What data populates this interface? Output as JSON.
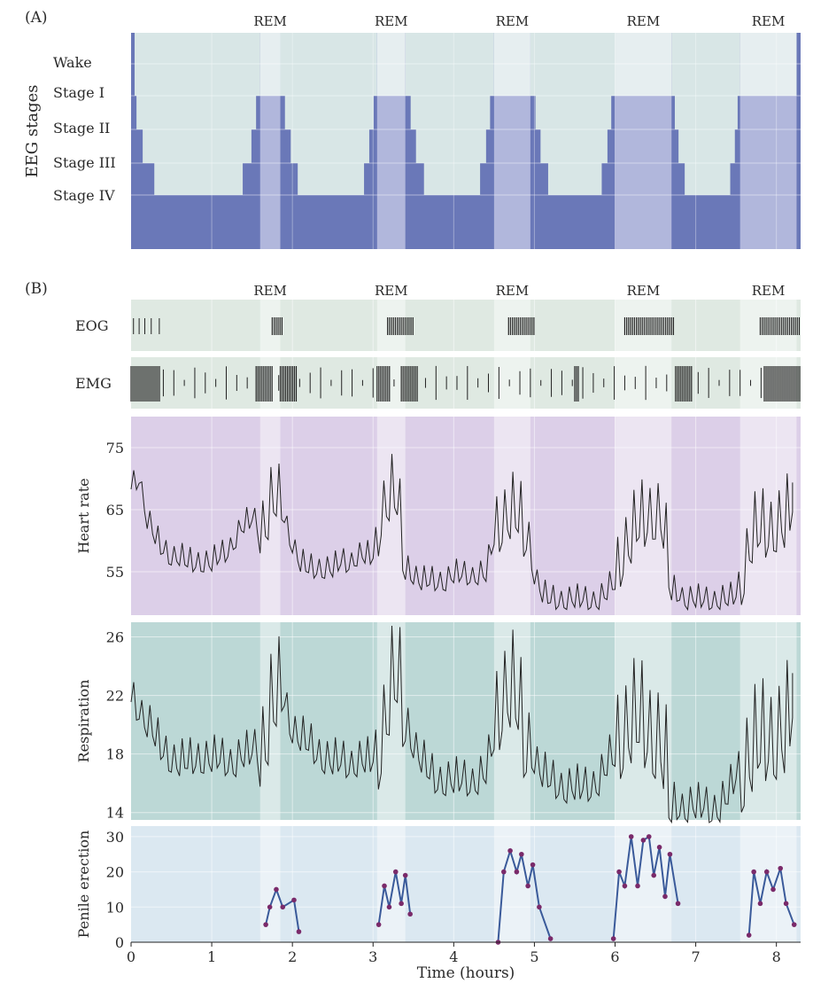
{
  "chart_data": [
    {
      "panel": "(A)",
      "type": "area",
      "ylabel": "EEG stages",
      "stages": [
        "Wake",
        "Stage I",
        "Stage II",
        "Stage III",
        "Stage IV"
      ],
      "rem_label": "REM",
      "rem_periods_hours": [
        [
          1.6,
          1.85
        ],
        [
          3.05,
          3.4
        ],
        [
          4.5,
          4.95
        ],
        [
          6.0,
          6.7
        ],
        [
          7.55,
          8.25
        ]
      ],
      "colors": {
        "deep": "#6a78b8",
        "light": "#d8e6e6",
        "rem": "#b9bee0"
      }
    },
    {
      "panel": "(B)",
      "type": "line",
      "xlabel": "Time (hours)",
      "xticks": [
        0,
        1,
        2,
        3,
        4,
        5,
        6,
        7,
        8
      ],
      "xlim": [
        0,
        8.3
      ],
      "rem_label": "REM",
      "tracks": [
        {
          "label": "EOG",
          "color": "#dfe9e2"
        },
        {
          "label": "EMG",
          "color": "#dfe9e2"
        }
      ],
      "series": [
        {
          "name": "Heart rate",
          "ylim": [
            48,
            80
          ],
          "yticks": [
            55,
            65,
            75
          ],
          "color": "#dccfe8",
          "x": [
            0,
            0.1,
            0.2,
            0.3,
            0.4,
            0.5,
            0.6,
            0.7,
            0.8,
            0.9,
            1.0,
            1.1,
            1.2,
            1.3,
            1.4,
            1.5,
            1.6,
            1.7,
            1.8,
            1.9,
            2.0,
            2.1,
            2.2,
            2.3,
            2.4,
            2.5,
            2.6,
            2.7,
            2.8,
            2.9,
            3.0,
            3.1,
            3.2,
            3.3,
            3.4,
            3.5,
            3.6,
            3.7,
            3.8,
            3.9,
            4.0,
            4.1,
            4.2,
            4.3,
            4.4,
            4.5,
            4.6,
            4.7,
            4.8,
            4.9,
            5.0,
            5.1,
            5.2,
            5.3,
            5.4,
            5.5,
            5.6,
            5.7,
            5.8,
            5.9,
            6.0,
            6.1,
            6.2,
            6.3,
            6.4,
            6.5,
            6.6,
            6.7,
            6.8,
            6.9,
            7.0,
            7.1,
            7.2,
            7.3,
            7.4,
            7.5,
            7.6,
            7.7,
            7.8,
            7.9,
            8.0,
            8.1,
            8.2
          ],
          "values": [
            69,
            71,
            64,
            61,
            59,
            58,
            58,
            57,
            57,
            57,
            57,
            58,
            59,
            61,
            63,
            64,
            63,
            66,
            68,
            64,
            60,
            57,
            56,
            56,
            56,
            56,
            57,
            57,
            58,
            58,
            58,
            66,
            69,
            68,
            57,
            55,
            54,
            54,
            54,
            54,
            55,
            55,
            55,
            55,
            55,
            62,
            65,
            66,
            65,
            62,
            55,
            52,
            51,
            51,
            51,
            51,
            51,
            51,
            51,
            52,
            55,
            60,
            62,
            64,
            65,
            66,
            64,
            53,
            52,
            51,
            51,
            51,
            51,
            51,
            51,
            52,
            57,
            62,
            63,
            63,
            64,
            64,
            67
          ]
        },
        {
          "name": "Respiration",
          "ylim": [
            13.5,
            27
          ],
          "yticks": [
            14,
            18,
            22,
            26
          ],
          "color": "#bcd8d6",
          "x": [
            0,
            0.1,
            0.2,
            0.3,
            0.4,
            0.5,
            0.6,
            0.7,
            0.8,
            0.9,
            1.0,
            1.1,
            1.2,
            1.3,
            1.4,
            1.5,
            1.6,
            1.7,
            1.8,
            1.9,
            2.0,
            2.1,
            2.2,
            2.3,
            2.4,
            2.5,
            2.6,
            2.7,
            2.8,
            2.9,
            3.0,
            3.1,
            3.2,
            3.3,
            3.4,
            3.5,
            3.6,
            3.7,
            3.8,
            3.9,
            4.0,
            4.1,
            4.2,
            4.3,
            4.4,
            4.5,
            4.6,
            4.7,
            4.8,
            4.9,
            5.0,
            5.1,
            5.2,
            5.3,
            5.4,
            5.5,
            5.6,
            5.7,
            5.8,
            5.9,
            6.0,
            6.1,
            6.2,
            6.3,
            6.4,
            6.5,
            6.6,
            6.7,
            6.8,
            6.9,
            7.0,
            7.1,
            7.2,
            7.3,
            7.4,
            7.5,
            7.6,
            7.7,
            7.8,
            7.9,
            8.0,
            8.1,
            8.2
          ],
          "values": [
            22,
            21.5,
            20.5,
            19.5,
            18.5,
            18,
            17.8,
            17.8,
            18,
            18,
            18,
            18,
            17.8,
            17.8,
            18.2,
            18.5,
            19,
            21,
            22.5,
            22,
            20,
            19.5,
            19,
            18.5,
            18,
            17.8,
            17.8,
            17.7,
            17.8,
            17.8,
            18,
            20,
            23,
            24,
            21,
            19,
            18,
            17,
            16.5,
            16.5,
            16.5,
            16.5,
            16.5,
            16.6,
            17,
            20,
            23,
            23.5,
            22,
            19,
            18,
            17,
            16.5,
            16.2,
            16,
            16,
            16,
            16.2,
            16.5,
            17.5,
            19,
            20.5,
            21,
            21,
            20.5,
            20,
            19,
            15,
            14.8,
            14.7,
            14.7,
            14.8,
            14.6,
            14.7,
            15.5,
            17,
            18,
            19,
            19.5,
            20,
            20,
            20,
            22
          ]
        },
        {
          "name": "Penile erection",
          "ylim": [
            0,
            33
          ],
          "yticks": [
            0,
            10,
            20,
            30
          ],
          "color": "#dbe8f1",
          "segments": [
            {
              "x": [
                1.67,
                1.72,
                1.8,
                1.88,
                2.02,
                2.08
              ],
              "values": [
                5,
                10,
                15,
                10,
                12,
                3
              ]
            },
            {
              "x": [
                3.07,
                3.14,
                3.2,
                3.28,
                3.35,
                3.4,
                3.46
              ],
              "values": [
                5,
                16,
                10,
                20,
                11,
                19,
                8
              ]
            },
            {
              "x": [
                4.55,
                4.62,
                4.7,
                4.78,
                4.84,
                4.92,
                4.98,
                5.06,
                5.2
              ],
              "values": [
                0,
                20,
                26,
                20,
                25,
                16,
                22,
                10,
                1
              ]
            },
            {
              "x": [
                5.98,
                6.05,
                6.12,
                6.2,
                6.28,
                6.35,
                6.42,
                6.48,
                6.55,
                6.62,
                6.68,
                6.78
              ],
              "values": [
                1,
                20,
                16,
                30,
                16,
                29,
                30,
                19,
                27,
                13,
                25,
                11
              ]
            },
            {
              "x": [
                7.66,
                7.72,
                7.8,
                7.88,
                7.96,
                8.05,
                8.12,
                8.22
              ],
              "values": [
                2,
                20,
                11,
                20,
                15,
                21,
                11,
                5
              ]
            }
          ]
        }
      ]
    }
  ]
}
